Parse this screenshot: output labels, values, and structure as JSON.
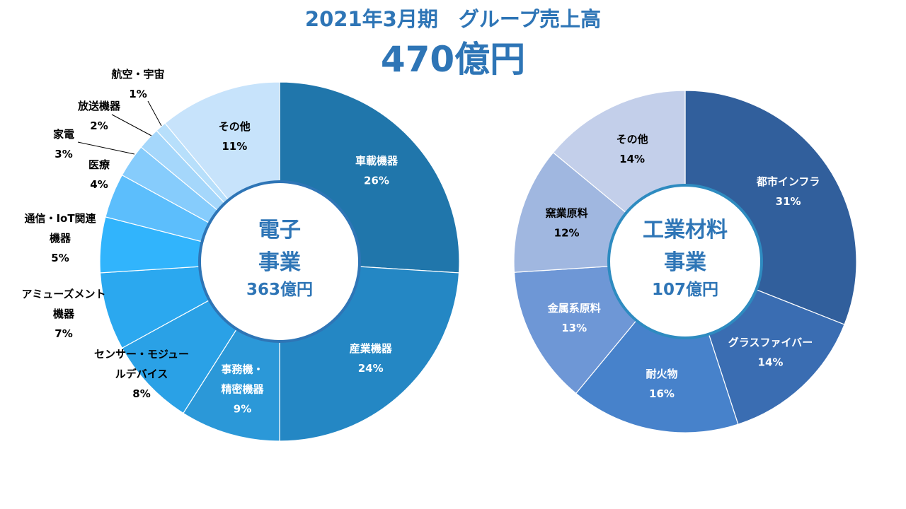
{
  "header": {
    "title": "2021年3月期　グループ売上高",
    "total": "470億円"
  },
  "chart_data": [
    {
      "type": "pie",
      "center_label": [
        "電子",
        "事業"
      ],
      "center_value": "363億円",
      "categories": [
        "車載機器",
        "産業機器",
        "事務機・精密機器",
        "センサー・モジュールデバイス",
        "アミューズメント機器",
        "通信・IoT関連機器",
        "医療",
        "家電",
        "放送機器",
        "航空・宇宙",
        "その他"
      ],
      "display_labels": [
        [
          "車載機器"
        ],
        [
          "産業機器"
        ],
        [
          "事務機・",
          "精密機器"
        ],
        [
          "センサー・モジュー",
          "ルデバイス"
        ],
        [
          "アミューズメント",
          "機器"
        ],
        [
          "通信・IoT関連",
          "機器"
        ],
        [
          "医療"
        ],
        [
          "家電"
        ],
        [
          "放送機器"
        ],
        [
          "航空・宇宙"
        ],
        [
          "その他"
        ]
      ],
      "values": [
        26,
        24,
        9,
        8,
        7,
        5,
        4,
        3,
        2,
        1,
        11
      ],
      "value_labels": [
        "26%",
        "24%",
        "9%",
        "8%",
        "7%",
        "5%",
        "4%",
        "3%",
        "2%",
        "1%",
        "11%"
      ],
      "colors": [
        "#2076ab",
        "#2487c4",
        "#2b98d8",
        "#2aa1e6",
        "#2ba8ef",
        "#31b4fc",
        "#5cbefc",
        "#86ccfc",
        "#a5d7fb",
        "#b7dffb",
        "#c7e3fb"
      ]
    },
    {
      "type": "pie",
      "center_label": [
        "工業材料",
        "事業"
      ],
      "center_value": "107億円",
      "categories": [
        "都市インフラ",
        "グラスファイバー",
        "耐火物",
        "金属系原料",
        "窯業原料",
        "その他"
      ],
      "display_labels": [
        [
          "都市インフラ"
        ],
        [
          "グラスファイバー"
        ],
        [
          "耐火物"
        ],
        [
          "金属系原料"
        ],
        [
          "窯業原料"
        ],
        [
          "その他"
        ]
      ],
      "values": [
        31,
        14,
        16,
        13,
        12,
        14
      ],
      "value_labels": [
        "31%",
        "14%",
        "16%",
        "13%",
        "12%",
        "14%"
      ],
      "colors": [
        "#315f9c",
        "#3a6db2",
        "#4782cb",
        "#6e97d6",
        "#a0b7e0",
        "#c3cfea"
      ]
    }
  ]
}
